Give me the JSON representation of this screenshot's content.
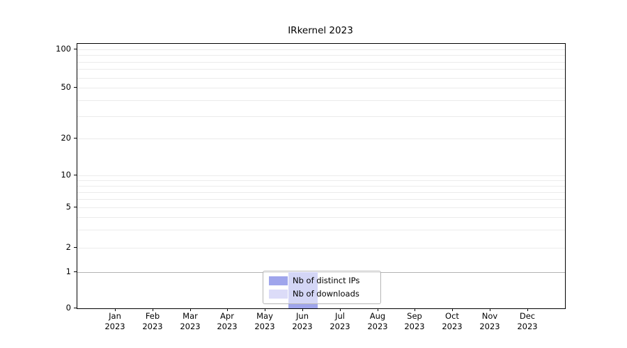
{
  "chart_data": {
    "type": "bar",
    "title": "IRkernel 2023",
    "x_months": [
      "Jan",
      "Feb",
      "Mar",
      "Apr",
      "May",
      "Jun",
      "Jul",
      "Aug",
      "Sep",
      "Oct",
      "Nov",
      "Dec"
    ],
    "x_year": "2023",
    "xlabel": "",
    "ylabel": "",
    "y_scale": "symlog",
    "y_ticks": [
      0,
      1,
      2,
      5,
      10,
      20,
      50,
      100
    ],
    "ylim": [
      0,
      100
    ],
    "grid": "horizontal log minor gridlines, on",
    "legend_position": "lower center (inside plot)",
    "series": [
      {
        "name": "Nb of distinct IPs",
        "color": "#9fa5ec",
        "values": [
          0,
          0,
          0,
          0,
          0,
          1,
          0,
          0,
          0,
          0,
          0,
          0
        ]
      },
      {
        "name": "Nb of downloads",
        "color": "#dcdcf8",
        "values": [
          0,
          0,
          0,
          0,
          0,
          1,
          0,
          0,
          0,
          0,
          0,
          0
        ]
      }
    ]
  }
}
